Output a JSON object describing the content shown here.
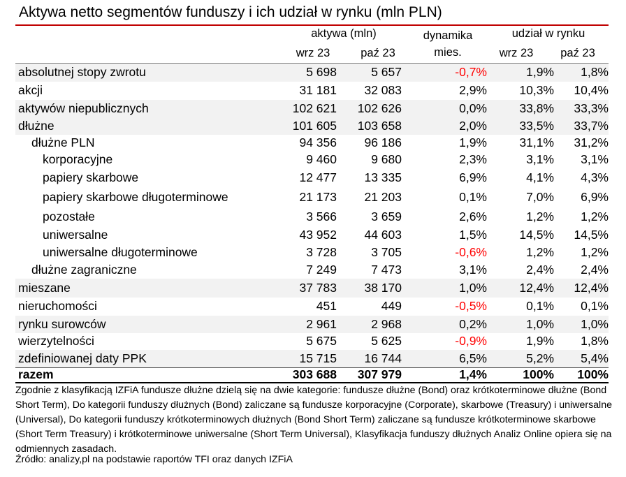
{
  "title": "Aktywa netto segmentów funduszy i ich udział w rynku (mln PLN)",
  "headers": {
    "aktywa": "aktywa (mln)",
    "dynamika_line1": "dynamika",
    "dynamika_line2": "mies.",
    "udzial": "udział w rynku",
    "wrz": "wrz 23",
    "paz": "paź 23"
  },
  "colors": {
    "accent_rule": "#c00000",
    "negative": "#ff0000",
    "shade": "#f2f2f2"
  },
  "rows": [
    {
      "name": "absolutnej stopy zwrotu",
      "indent": 0,
      "shade": true,
      "wrz": "5 698",
      "paz": "5 657",
      "dyn": "-0,7%",
      "neg": true,
      "u_wrz": "1,9%",
      "u_paz": "1,8%"
    },
    {
      "name": "akcji",
      "indent": 0,
      "shade": false,
      "wrz": "31 181",
      "paz": "32 083",
      "dyn": "2,9%",
      "neg": false,
      "u_wrz": "10,3%",
      "u_paz": "10,4%"
    },
    {
      "name": "aktywów niepublicznych",
      "indent": 0,
      "shade": true,
      "wrz": "102 621",
      "paz": "102 626",
      "dyn": "0,0%",
      "neg": false,
      "u_wrz": "33,8%",
      "u_paz": "33,3%"
    },
    {
      "name": "dłużne",
      "indent": 0,
      "shade": true,
      "wrz": "101 605",
      "paz": "103 658",
      "dyn": "2,0%",
      "neg": false,
      "u_wrz": "33,5%",
      "u_paz": "33,7%"
    },
    {
      "name": "dłużne PLN",
      "indent": 1,
      "shade": false,
      "wrz": "94 356",
      "paz": "96 186",
      "dyn": "1,9%",
      "neg": false,
      "u_wrz": "31,1%",
      "u_paz": "31,2%"
    },
    {
      "name": "korporacyjne",
      "indent": 2,
      "shade": false,
      "wrz": "9 460",
      "paz": "9 680",
      "dyn": "2,3%",
      "neg": false,
      "u_wrz": "3,1%",
      "u_paz": "3,1%"
    },
    {
      "name": "papiery skarbowe",
      "indent": 2,
      "shade": false,
      "wrz": "12 477",
      "paz": "13 335",
      "dyn": "6,9%",
      "neg": false,
      "u_wrz": "4,1%",
      "u_paz": "4,3%"
    },
    {
      "name": "papiery skarbowe długoterminowe",
      "indent": 2,
      "shade": false,
      "wrz": "21 173",
      "paz": "21 203",
      "dyn": "0,1%",
      "neg": false,
      "u_wrz": "7,0%",
      "u_paz": "6,9%"
    },
    {
      "name": "pozostałe",
      "indent": 2,
      "shade": false,
      "wrz": "3 566",
      "paz": "3 659",
      "dyn": "2,6%",
      "neg": false,
      "u_wrz": "1,2%",
      "u_paz": "1,2%"
    },
    {
      "name": "uniwersalne",
      "indent": 2,
      "shade": false,
      "wrz": "43 952",
      "paz": "44 603",
      "dyn": "1,5%",
      "neg": false,
      "u_wrz": "14,5%",
      "u_paz": "14,5%"
    },
    {
      "name": "uniwersalne długoterminowe",
      "indent": 2,
      "shade": false,
      "wrz": "3 728",
      "paz": "3 705",
      "dyn": "-0,6%",
      "neg": true,
      "u_wrz": "1,2%",
      "u_paz": "1,2%"
    },
    {
      "name": "dłużne zagraniczne",
      "indent": 1,
      "shade": false,
      "wrz": "7 249",
      "paz": "7 473",
      "dyn": "3,1%",
      "neg": false,
      "u_wrz": "2,4%",
      "u_paz": "2,4%"
    },
    {
      "name": "mieszane",
      "indent": 0,
      "shade": true,
      "wrz": "37 783",
      "paz": "38 170",
      "dyn": "1,0%",
      "neg": false,
      "u_wrz": "12,4%",
      "u_paz": "12,4%"
    },
    {
      "name": "nieruchomości",
      "indent": 0,
      "shade": false,
      "wrz": "451",
      "paz": "449",
      "dyn": "-0,5%",
      "neg": true,
      "u_wrz": "0,1%",
      "u_paz": "0,1%"
    },
    {
      "name": "rynku surowców",
      "indent": 0,
      "shade": true,
      "wrz": "2 961",
      "paz": "2 968",
      "dyn": "0,2%",
      "neg": false,
      "u_wrz": "1,0%",
      "u_paz": "1,0%"
    },
    {
      "name": "wierzytelności",
      "indent": 0,
      "shade": false,
      "wrz": "5 675",
      "paz": "5 625",
      "dyn": "-0,9%",
      "neg": true,
      "u_wrz": "1,9%",
      "u_paz": "1,8%"
    },
    {
      "name": "zdefiniowanej daty PPK",
      "indent": 0,
      "shade": true,
      "wrz": "15 715",
      "paz": "16 744",
      "dyn": "6,5%",
      "neg": false,
      "u_wrz": "5,2%",
      "u_paz": "5,4%"
    }
  ],
  "total": {
    "name": "razem",
    "wrz": "303 688",
    "paz": "307 979",
    "dyn": "1,4%",
    "u_wrz": "100%",
    "u_paz": "100%"
  },
  "footnote": "Zgodnie z klasyfikacją IZFiA fundusze dłużne dzielą się na dwie kategorie: fundusze dłużne (Bond) oraz krótkoterminowe dłużne (Bond Short Term), Do kategorii funduszy dłużnych (Bond) zaliczane są fundusze korporacyjne (Corporate), skarbowe (Treasury) i uniwersalne (Universal), Do kategorii funduszy krótkoterminowych dłużnych (Bond Short Term) zaliczane są fundusze krótkoterminowe skarbowe (Short Term Treasury) i krótkoterminowe uniwersalne (Short Term Universal), Klasyfikacja funduszy dłużnych Analiz Online opiera się na odmiennych zasadach.",
  "source": "Źródło: analizy,pl na podstawie raportów TFI oraz danych IZFiA"
}
